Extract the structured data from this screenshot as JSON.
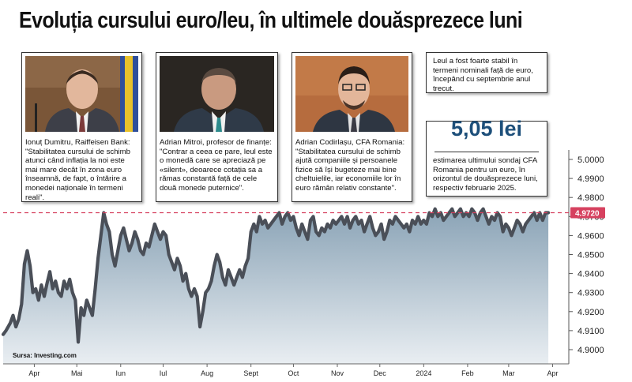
{
  "title": "Evoluția cursului euro/leu, în ultimele douăsprezece luni",
  "source": "Sursa: Investing.com",
  "cards": [
    {
      "name": "Ionuț Dumitru",
      "heading": "Ionuț Dumitru, Raiffeisen Bank:",
      "quote": "\"Stabilitatea cursului de schimb atunci când inflația la noi este mai mare decât în zona euro înseamnă, de fapt, o întărire a monedei naționale în termeni reali\"."
    },
    {
      "name": "Adrian Mitroi",
      "heading": "Adrian Mitroi, profesor de finanțe:",
      "quote": "\"Contrar a ceea ce pare, leul este o monedă care se apreciază pe «silent», deoarece cotația sa a rămas constantă față de cele două monede puternice\"."
    },
    {
      "name": "Adrian Codirlașu",
      "heading": "Adrian Codirlașu, CFA Romania:",
      "quote": "\"Stabilitatea cursului de schimb ajută companiile și persoanele fizice să își bugeteze mai bine cheltuielile, iar economiile lor în euro rămân relativ constante\"."
    }
  ],
  "note": "Leul a fost foarte stabil în termeni nominali față de euro, începând cu septembrie anul trecut.",
  "estimate": {
    "value": "5,05 lei",
    "text": "estimarea ultimului sondaj CFA Romania pentru un euro, în orizontul de douăsprezece luni, respectiv februarie 2025."
  },
  "colors": {
    "area_top": "#8aa3b6",
    "area_bottom": "#e9eef2",
    "line": "#4a4f58",
    "current_line": "#d6415f",
    "current_badge": "#d6415f",
    "title_value": "#1d4f7a"
  },
  "chart_data": {
    "type": "area",
    "title": "Evoluția cursului euro/leu, în ultimele douăsprezece luni",
    "xlabel": "",
    "ylabel": "",
    "ylim": [
      4.895,
      5.005
    ],
    "yticks": [
      4.9,
      4.91,
      4.92,
      4.93,
      4.94,
      4.95,
      4.96,
      4.97,
      4.98,
      4.99,
      5.0
    ],
    "ytick_labels": [
      "4.9000",
      "4.9100",
      "4.9200",
      "4.9300",
      "4.9400",
      "4.9500",
      "4.9600",
      "4.9700",
      "4.9800",
      "4.9900",
      "5.0000"
    ],
    "xlim": [
      "2023-03-10",
      "2024-04-08"
    ],
    "xticks": [
      {
        "date": "2023-04-01",
        "label": "Apr"
      },
      {
        "date": "2023-05-01",
        "label": "Mai"
      },
      {
        "date": "2023-06-01",
        "label": "Iun"
      },
      {
        "date": "2023-07-01",
        "label": "Iul"
      },
      {
        "date": "2023-08-01",
        "label": "Aug"
      },
      {
        "date": "2023-09-01",
        "label": "Sept"
      },
      {
        "date": "2023-10-01",
        "label": "Oct"
      },
      {
        "date": "2023-11-01",
        "label": "Nov"
      },
      {
        "date": "2023-12-01",
        "label": "Dec"
      },
      {
        "date": "2024-01-01",
        "label": "2024"
      },
      {
        "date": "2024-02-01",
        "label": "Feb"
      },
      {
        "date": "2024-03-01",
        "label": "Mar"
      },
      {
        "date": "2024-04-01",
        "label": "Apr"
      }
    ],
    "current_value": 4.972,
    "current_label": "4.9720",
    "series": [
      {
        "values": [
          [
            "2023-03-10",
            4.908
          ],
          [
            "2023-03-12",
            4.91
          ],
          [
            "2023-03-15",
            4.914
          ],
          [
            "2023-03-17",
            4.918
          ],
          [
            "2023-03-19",
            4.912
          ],
          [
            "2023-03-21",
            4.916
          ],
          [
            "2023-03-23",
            4.924
          ],
          [
            "2023-03-25",
            4.945
          ],
          [
            "2023-03-27",
            4.952
          ],
          [
            "2023-03-29",
            4.944
          ],
          [
            "2023-03-31",
            4.93
          ],
          [
            "2023-04-02",
            4.932
          ],
          [
            "2023-04-04",
            4.926
          ],
          [
            "2023-04-06",
            4.934
          ],
          [
            "2023-04-08",
            4.928
          ],
          [
            "2023-04-10",
            4.935
          ],
          [
            "2023-04-12",
            4.941
          ],
          [
            "2023-04-14",
            4.932
          ],
          [
            "2023-04-16",
            4.936
          ],
          [
            "2023-04-18",
            4.93
          ],
          [
            "2023-04-20",
            4.928
          ],
          [
            "2023-04-22",
            4.936
          ],
          [
            "2023-04-24",
            4.932
          ],
          [
            "2023-04-26",
            4.937
          ],
          [
            "2023-04-28",
            4.93
          ],
          [
            "2023-04-30",
            4.926
          ],
          [
            "2023-05-02",
            4.904
          ],
          [
            "2023-05-04",
            4.922
          ],
          [
            "2023-05-06",
            4.918
          ],
          [
            "2023-05-08",
            4.926
          ],
          [
            "2023-05-10",
            4.922
          ],
          [
            "2023-05-12",
            4.918
          ],
          [
            "2023-05-14",
            4.932
          ],
          [
            "2023-05-16",
            4.948
          ],
          [
            "2023-05-18",
            4.96
          ],
          [
            "2023-05-20",
            4.972
          ],
          [
            "2023-05-22",
            4.966
          ],
          [
            "2023-05-24",
            4.962
          ],
          [
            "2023-05-26",
            4.95
          ],
          [
            "2023-05-28",
            4.944
          ],
          [
            "2023-05-30",
            4.952
          ],
          [
            "2023-06-01",
            4.96
          ],
          [
            "2023-06-03",
            4.964
          ],
          [
            "2023-06-05",
            4.958
          ],
          [
            "2023-06-07",
            4.952
          ],
          [
            "2023-06-09",
            4.956
          ],
          [
            "2023-06-11",
            4.962
          ],
          [
            "2023-06-13",
            4.958
          ],
          [
            "2023-06-15",
            4.952
          ],
          [
            "2023-06-17",
            4.95
          ],
          [
            "2023-06-19",
            4.956
          ],
          [
            "2023-06-21",
            4.954
          ],
          [
            "2023-06-23",
            4.96
          ],
          [
            "2023-06-25",
            4.966
          ],
          [
            "2023-06-27",
            4.962
          ],
          [
            "2023-06-29",
            4.958
          ],
          [
            "2023-07-01",
            4.962
          ],
          [
            "2023-07-03",
            4.96
          ],
          [
            "2023-07-05",
            4.95
          ],
          [
            "2023-07-07",
            4.946
          ],
          [
            "2023-07-09",
            4.942
          ],
          [
            "2023-07-11",
            4.948
          ],
          [
            "2023-07-13",
            4.944
          ],
          [
            "2023-07-15",
            4.936
          ],
          [
            "2023-07-17",
            4.94
          ],
          [
            "2023-07-19",
            4.932
          ],
          [
            "2023-07-21",
            4.928
          ],
          [
            "2023-07-23",
            4.932
          ],
          [
            "2023-07-25",
            4.928
          ],
          [
            "2023-07-27",
            4.912
          ],
          [
            "2023-07-29",
            4.92
          ],
          [
            "2023-07-31",
            4.93
          ],
          [
            "2023-08-02",
            4.932
          ],
          [
            "2023-08-04",
            4.936
          ],
          [
            "2023-08-06",
            4.944
          ],
          [
            "2023-08-08",
            4.95
          ],
          [
            "2023-08-10",
            4.946
          ],
          [
            "2023-08-12",
            4.938
          ],
          [
            "2023-08-14",
            4.934
          ],
          [
            "2023-08-16",
            4.942
          ],
          [
            "2023-08-18",
            4.938
          ],
          [
            "2023-08-20",
            4.934
          ],
          [
            "2023-08-22",
            4.938
          ],
          [
            "2023-08-24",
            4.942
          ],
          [
            "2023-08-26",
            4.938
          ],
          [
            "2023-08-28",
            4.944
          ],
          [
            "2023-08-30",
            4.948
          ],
          [
            "2023-09-01",
            4.962
          ],
          [
            "2023-09-03",
            4.966
          ],
          [
            "2023-09-05",
            4.962
          ],
          [
            "2023-09-07",
            4.97
          ],
          [
            "2023-09-09",
            4.966
          ],
          [
            "2023-09-11",
            4.968
          ],
          [
            "2023-09-13",
            4.964
          ],
          [
            "2023-09-15",
            4.966
          ],
          [
            "2023-09-17",
            4.968
          ],
          [
            "2023-09-19",
            4.97
          ],
          [
            "2023-09-21",
            4.972
          ],
          [
            "2023-09-23",
            4.966
          ],
          [
            "2023-09-25",
            4.97
          ],
          [
            "2023-09-27",
            4.972
          ],
          [
            "2023-09-29",
            4.968
          ],
          [
            "2023-10-01",
            4.97
          ],
          [
            "2023-10-03",
            4.964
          ],
          [
            "2023-10-05",
            4.96
          ],
          [
            "2023-10-07",
            4.966
          ],
          [
            "2023-10-09",
            4.962
          ],
          [
            "2023-10-11",
            4.958
          ],
          [
            "2023-10-13",
            4.968
          ],
          [
            "2023-10-15",
            4.97
          ],
          [
            "2023-10-17",
            4.962
          ],
          [
            "2023-10-19",
            4.96
          ],
          [
            "2023-10-21",
            4.964
          ],
          [
            "2023-10-23",
            4.962
          ],
          [
            "2023-10-25",
            4.966
          ],
          [
            "2023-10-27",
            4.964
          ],
          [
            "2023-10-29",
            4.968
          ],
          [
            "2023-10-31",
            4.966
          ],
          [
            "2023-11-02",
            4.968
          ],
          [
            "2023-11-04",
            4.97
          ],
          [
            "2023-11-06",
            4.966
          ],
          [
            "2023-11-08",
            4.97
          ],
          [
            "2023-11-10",
            4.964
          ],
          [
            "2023-11-12",
            4.968
          ],
          [
            "2023-11-14",
            4.97
          ],
          [
            "2023-11-16",
            4.966
          ],
          [
            "2023-11-18",
            4.968
          ],
          [
            "2023-11-20",
            4.962
          ],
          [
            "2023-11-22",
            4.966
          ],
          [
            "2023-11-24",
            4.97
          ],
          [
            "2023-11-26",
            4.964
          ],
          [
            "2023-11-28",
            4.96
          ],
          [
            "2023-11-30",
            4.962
          ],
          [
            "2023-12-02",
            4.966
          ],
          [
            "2023-12-04",
            4.958
          ],
          [
            "2023-12-06",
            4.962
          ],
          [
            "2023-12-08",
            4.968
          ],
          [
            "2023-12-10",
            4.966
          ],
          [
            "2023-12-12",
            4.97
          ],
          [
            "2023-12-14",
            4.968
          ],
          [
            "2023-12-16",
            4.966
          ],
          [
            "2023-12-18",
            4.964
          ],
          [
            "2023-12-20",
            4.966
          ],
          [
            "2023-12-22",
            4.962
          ],
          [
            "2023-12-24",
            4.968
          ],
          [
            "2023-12-26",
            4.966
          ],
          [
            "2023-12-28",
            4.97
          ],
          [
            "2023-12-30",
            4.966
          ],
          [
            "2024-01-01",
            4.968
          ],
          [
            "2024-01-03",
            4.966
          ],
          [
            "2024-01-05",
            4.972
          ],
          [
            "2024-01-07",
            4.97
          ],
          [
            "2024-01-09",
            4.974
          ],
          [
            "2024-01-11",
            4.97
          ],
          [
            "2024-01-13",
            4.972
          ],
          [
            "2024-01-15",
            4.968
          ],
          [
            "2024-01-17",
            4.97
          ],
          [
            "2024-01-19",
            4.972
          ],
          [
            "2024-01-21",
            4.974
          ],
          [
            "2024-01-23",
            4.97
          ],
          [
            "2024-01-25",
            4.972
          ],
          [
            "2024-01-27",
            4.974
          ],
          [
            "2024-01-29",
            4.97
          ],
          [
            "2024-01-31",
            4.972
          ],
          [
            "2024-02-02",
            4.97
          ],
          [
            "2024-02-04",
            4.974
          ],
          [
            "2024-02-06",
            4.972
          ],
          [
            "2024-02-08",
            4.968
          ],
          [
            "2024-02-10",
            4.972
          ],
          [
            "2024-02-12",
            4.974
          ],
          [
            "2024-02-14",
            4.97
          ],
          [
            "2024-02-16",
            4.966
          ],
          [
            "2024-02-18",
            4.97
          ],
          [
            "2024-02-20",
            4.968
          ],
          [
            "2024-02-22",
            4.972
          ],
          [
            "2024-02-24",
            4.97
          ],
          [
            "2024-02-26",
            4.962
          ],
          [
            "2024-02-28",
            4.966
          ],
          [
            "2024-03-01",
            4.964
          ],
          [
            "2024-03-03",
            4.96
          ],
          [
            "2024-03-05",
            4.964
          ],
          [
            "2024-03-07",
            4.968
          ],
          [
            "2024-03-09",
            4.966
          ],
          [
            "2024-03-11",
            4.962
          ],
          [
            "2024-03-13",
            4.966
          ],
          [
            "2024-03-15",
            4.968
          ],
          [
            "2024-03-17",
            4.97
          ],
          [
            "2024-03-19",
            4.972
          ],
          [
            "2024-03-21",
            4.968
          ],
          [
            "2024-03-23",
            4.972
          ],
          [
            "2024-03-25",
            4.968
          ],
          [
            "2024-03-27",
            4.972
          ],
          [
            "2024-03-29",
            4.972
          ]
        ]
      }
    ]
  }
}
